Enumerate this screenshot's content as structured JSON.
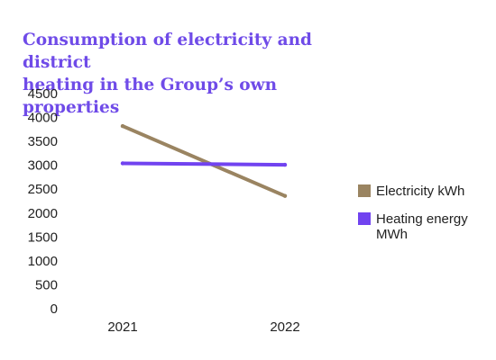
{
  "chart_data": {
    "type": "line",
    "title": "Consumption of electricity and district\nheating in the Group’s own properties",
    "xlabel": "",
    "ylabel": "",
    "x": [
      "2021",
      "2022"
    ],
    "ylim": [
      0,
      4500
    ],
    "yticks": [
      "0",
      "500",
      "1000",
      "1500",
      "2000",
      "2500",
      "3000",
      "3500",
      "4000",
      "4500"
    ],
    "grid": false,
    "legend_position": "right",
    "series": [
      {
        "name": "Electricity kWh",
        "values": [
          3820,
          2360
        ],
        "color": "#9a8461"
      },
      {
        "name": "Heating energy MWh",
        "values": [
          3040,
          3010
        ],
        "color": "#7143f0"
      }
    ]
  }
}
